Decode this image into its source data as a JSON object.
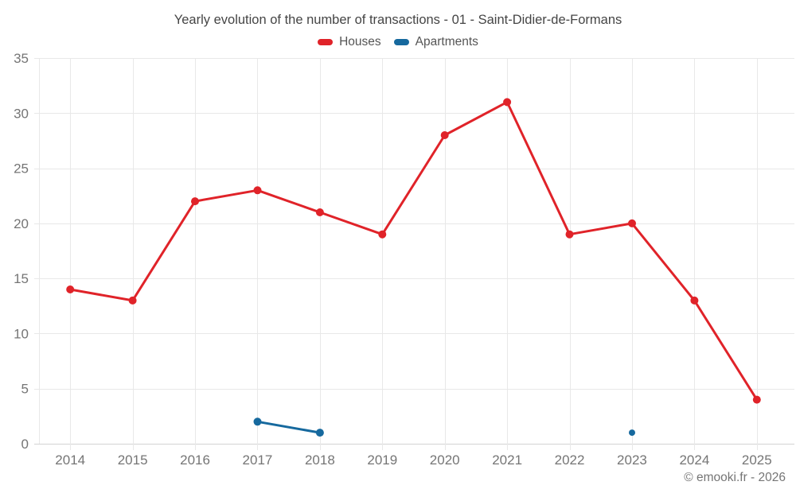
{
  "header": {
    "title": "Yearly evolution of the number of transactions - 01 - Saint-Didier-de-Formans"
  },
  "legend": {
    "items": [
      {
        "label": "Houses",
        "color": "#e02329"
      },
      {
        "label": "Apartments",
        "color": "#16699e"
      }
    ]
  },
  "footer": {
    "copyright": "© emooki.fr - 2026"
  },
  "chart_data": {
    "type": "line",
    "title": "Yearly evolution of the number of transactions - 01 - Saint-Didier-de-Formans",
    "categories": [
      "2014",
      "2015",
      "2016",
      "2017",
      "2018",
      "2019",
      "2020",
      "2021",
      "2022",
      "2023",
      "2024",
      "2025"
    ],
    "series": [
      {
        "name": "Houses",
        "color": "#e02329",
        "values": [
          14,
          13,
          22,
          23,
          21,
          19,
          28,
          31,
          19,
          20,
          13,
          4
        ]
      },
      {
        "name": "Apartments",
        "color": "#16699e",
        "values": [
          null,
          null,
          null,
          2,
          1,
          null,
          null,
          null,
          null,
          1,
          null,
          null
        ]
      }
    ],
    "xlabel": "",
    "ylabel": "",
    "ylim": [
      0,
      35
    ],
    "yticks": [
      0,
      5,
      10,
      15,
      20,
      25,
      30,
      35
    ],
    "grid": true,
    "legend_position": "top",
    "colors": {
      "grid": "#e8e8e8",
      "axis": "#d2d2d2",
      "tick_label": "#757575"
    }
  }
}
